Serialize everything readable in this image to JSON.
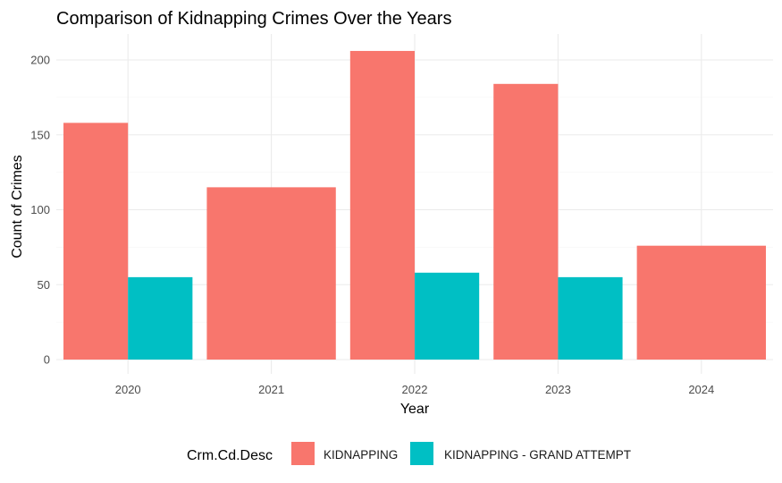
{
  "chart_data": {
    "type": "bar",
    "title": "Comparison of Kidnapping Crimes Over the Years",
    "xlabel": "Year",
    "ylabel": "Count of Crimes",
    "categories": [
      "2020",
      "2021",
      "2022",
      "2023",
      "2024"
    ],
    "series": [
      {
        "name": "KIDNAPPING",
        "values": [
          158,
          115,
          206,
          184,
          76
        ],
        "color": "#F8766D"
      },
      {
        "name": "KIDNAPPING - GRAND ATTEMPT",
        "values": [
          55,
          null,
          58,
          55,
          null
        ],
        "color": "#00BFC4"
      }
    ],
    "yticks": [
      0,
      50,
      100,
      150,
      200
    ],
    "ylim": [
      0,
      215
    ],
    "grid": true,
    "bar_position": "dodge",
    "legend": {
      "title": "Crm.Cd.Desc",
      "position": "bottom"
    }
  }
}
